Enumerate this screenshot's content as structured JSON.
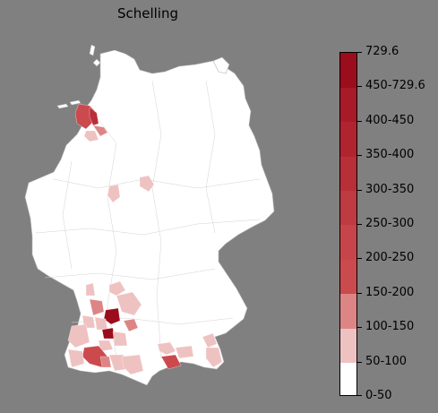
{
  "title": "Schelling",
  "legend": {
    "labels": [
      "0-50",
      "50-100",
      "100-150",
      "150-200",
      "200-250",
      "250-300",
      "300-350",
      "350-400",
      "400-450",
      "450-729.6",
      "729.6"
    ],
    "bins": [
      {
        "label": "0-50",
        "color": "#ffffff"
      },
      {
        "label": "50-100",
        "color": "#efc2c2"
      },
      {
        "label": "100-150",
        "color": "#dd8585"
      },
      {
        "label": "150-200",
        "color": "#cb4a4e"
      },
      {
        "label": "200-250",
        "color": "#c7454a"
      },
      {
        "label": "250-300",
        "color": "#c03a41"
      },
      {
        "label": "300-350",
        "color": "#b82f38"
      },
      {
        "label": "350-400",
        "color": "#b02430"
      },
      {
        "label": "400-450",
        "color": "#a81a28"
      },
      {
        "label": "450-729.6",
        "color": "#9b0c1c"
      }
    ]
  },
  "colors": {
    "background": "#808080",
    "land": "#ffffff",
    "border": "#c8c8c8"
  }
}
